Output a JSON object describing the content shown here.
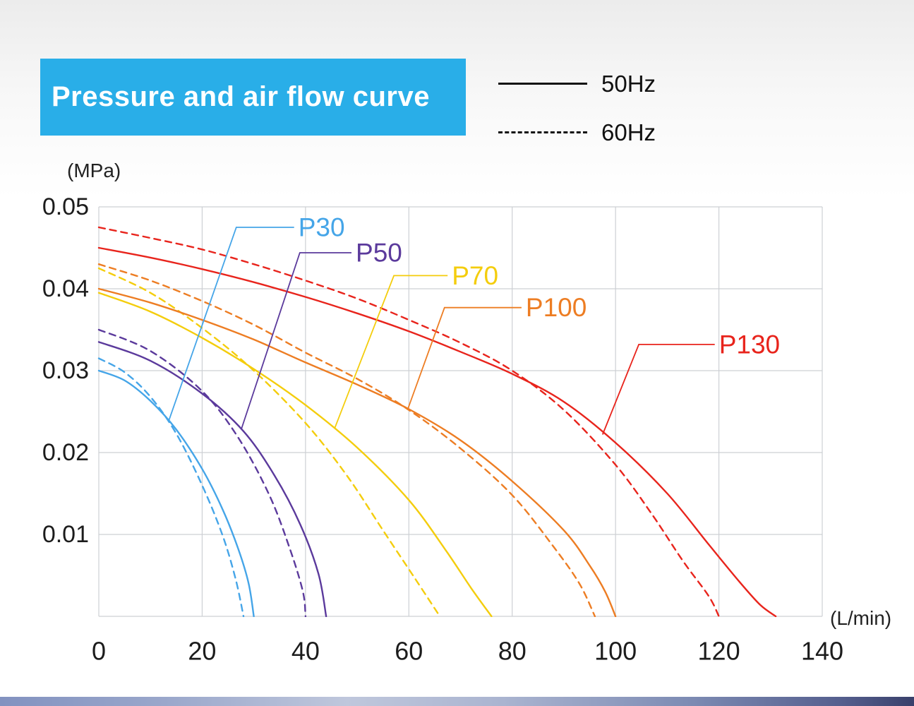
{
  "title": {
    "text": "Pressure and air flow curve",
    "bg_color": "#29AEE8",
    "text_color": "#FFFFFF"
  },
  "legend": {
    "line_color": "#111111",
    "items": [
      {
        "label": "50Hz",
        "line_style": "solid"
      },
      {
        "label": "60Hz",
        "line_style": "dashed"
      }
    ]
  },
  "axes": {
    "y_unit": "(MPa)",
    "x_unit": "(L/min)",
    "x_ticks": [
      "0",
      "20",
      "40",
      "60",
      "80",
      "100",
      "120",
      "140"
    ],
    "x_tick_values": [
      0,
      20,
      40,
      60,
      80,
      100,
      120,
      140
    ],
    "y_ticks": [
      "0.01",
      "0.02",
      "0.03",
      "0.04",
      "0.05"
    ],
    "y_tick_values": [
      0.01,
      0.02,
      0.03,
      0.04,
      0.05
    ],
    "grid_color": "#cdd0d4",
    "tick_color": "#1c1c1c"
  },
  "chart_data": {
    "type": "line",
    "title": "Pressure and air flow curve",
    "xlabel": "(L/min)",
    "ylabel": "(MPa)",
    "xlim": [
      0,
      140
    ],
    "ylim": [
      0,
      0.05
    ],
    "grid": true,
    "legend_position": "top-right",
    "series": [
      {
        "name": "P30 50Hz",
        "model": "P30",
        "frequency": "50Hz",
        "style": "solid",
        "color": "#45A5E8",
        "points": [
          [
            0,
            0.03
          ],
          [
            5,
            0.0288
          ],
          [
            10,
            0.0263
          ],
          [
            15,
            0.0228
          ],
          [
            20,
            0.018
          ],
          [
            24,
            0.013
          ],
          [
            27,
            0.0082
          ],
          [
            29,
            0.004
          ],
          [
            30,
            0
          ]
        ]
      },
      {
        "name": "P30 60Hz",
        "model": "P30",
        "frequency": "60Hz",
        "style": "dashed",
        "color": "#45A5E8",
        "points": [
          [
            0,
            0.0315
          ],
          [
            5,
            0.0298
          ],
          [
            10,
            0.0268
          ],
          [
            15,
            0.0223
          ],
          [
            20,
            0.016
          ],
          [
            24,
            0.0098
          ],
          [
            26.5,
            0.0045
          ],
          [
            28,
            0
          ]
        ]
      },
      {
        "name": "P50 50Hz",
        "model": "P50",
        "frequency": "50Hz",
        "style": "solid",
        "color": "#5B3A9C",
        "points": [
          [
            0,
            0.0335
          ],
          [
            10,
            0.0312
          ],
          [
            20,
            0.0272
          ],
          [
            28,
            0.0226
          ],
          [
            34,
            0.0172
          ],
          [
            39,
            0.0112
          ],
          [
            42.5,
            0.0052
          ],
          [
            44,
            0
          ]
        ]
      },
      {
        "name": "P50 60Hz",
        "model": "P50",
        "frequency": "60Hz",
        "style": "dashed",
        "color": "#5B3A9C",
        "points": [
          [
            0,
            0.035
          ],
          [
            10,
            0.0324
          ],
          [
            20,
            0.0275
          ],
          [
            27,
            0.0218
          ],
          [
            33,
            0.0148
          ],
          [
            37,
            0.0082
          ],
          [
            39.5,
            0.003
          ],
          [
            40,
            0
          ]
        ]
      },
      {
        "name": "P70 50Hz",
        "model": "P70",
        "frequency": "50Hz",
        "style": "solid",
        "color": "#F4CD0D",
        "points": [
          [
            0,
            0.0395
          ],
          [
            10,
            0.0372
          ],
          [
            20,
            0.034
          ],
          [
            30,
            0.0302
          ],
          [
            40,
            0.0258
          ],
          [
            50,
            0.0206
          ],
          [
            60,
            0.0142
          ],
          [
            67,
            0.0082
          ],
          [
            72,
            0.0035
          ],
          [
            76,
            0
          ]
        ]
      },
      {
        "name": "P70 60Hz",
        "model": "P70",
        "frequency": "60Hz",
        "style": "dashed",
        "color": "#F4CD0D",
        "points": [
          [
            0,
            0.0425
          ],
          [
            10,
            0.0395
          ],
          [
            20,
            0.0352
          ],
          [
            30,
            0.03
          ],
          [
            40,
            0.0236
          ],
          [
            48,
            0.0172
          ],
          [
            55,
            0.0105
          ],
          [
            61,
            0.0048
          ],
          [
            66,
            0
          ]
        ]
      },
      {
        "name": "P100 50Hz",
        "model": "P100",
        "frequency": "50Hz",
        "style": "solid",
        "color": "#ED7D23",
        "points": [
          [
            0,
            0.04
          ],
          [
            10,
            0.0383
          ],
          [
            20,
            0.0362
          ],
          [
            30,
            0.0338
          ],
          [
            40,
            0.031
          ],
          [
            50,
            0.0283
          ],
          [
            60,
            0.0253
          ],
          [
            70,
            0.0215
          ],
          [
            80,
            0.0165
          ],
          [
            90,
            0.0105
          ],
          [
            95,
            0.0062
          ],
          [
            98,
            0.003
          ],
          [
            100,
            0
          ]
        ]
      },
      {
        "name": "P100 60Hz",
        "model": "P100",
        "frequency": "60Hz",
        "style": "dashed",
        "color": "#ED7D23",
        "points": [
          [
            0,
            0.043
          ],
          [
            10,
            0.041
          ],
          [
            20,
            0.0385
          ],
          [
            30,
            0.0356
          ],
          [
            40,
            0.0322
          ],
          [
            50,
            0.029
          ],
          [
            60,
            0.0252
          ],
          [
            70,
            0.0205
          ],
          [
            80,
            0.0148
          ],
          [
            88,
            0.0085
          ],
          [
            93,
            0.004
          ],
          [
            96,
            0
          ]
        ]
      },
      {
        "name": "P130 50Hz",
        "model": "P130",
        "frequency": "50Hz",
        "style": "solid",
        "color": "#E8241C",
        "points": [
          [
            0,
            0.045
          ],
          [
            10,
            0.0438
          ],
          [
            20,
            0.0424
          ],
          [
            30,
            0.0408
          ],
          [
            40,
            0.039
          ],
          [
            50,
            0.037
          ],
          [
            60,
            0.0348
          ],
          [
            70,
            0.0323
          ],
          [
            80,
            0.0296
          ],
          [
            90,
            0.0262
          ],
          [
            100,
            0.0212
          ],
          [
            110,
            0.015
          ],
          [
            118,
            0.0088
          ],
          [
            124,
            0.0042
          ],
          [
            128,
            0.0014
          ],
          [
            131,
            0
          ]
        ]
      },
      {
        "name": "P130 60Hz",
        "model": "P130",
        "frequency": "60Hz",
        "style": "dashed",
        "color": "#E8241C",
        "points": [
          [
            0,
            0.0475
          ],
          [
            10,
            0.0462
          ],
          [
            20,
            0.0448
          ],
          [
            30,
            0.043
          ],
          [
            40,
            0.041
          ],
          [
            50,
            0.0388
          ],
          [
            60,
            0.0362
          ],
          [
            70,
            0.0334
          ],
          [
            80,
            0.03
          ],
          [
            90,
            0.0252
          ],
          [
            100,
            0.0185
          ],
          [
            107,
            0.0125
          ],
          [
            113,
            0.0068
          ],
          [
            118,
            0.0025
          ],
          [
            120,
            0
          ]
        ]
      }
    ],
    "annotations": [
      {
        "text": "P30",
        "color": "#45A5E8",
        "attach": [
          13.5,
          0.0238
        ],
        "elbow": [
          26.6,
          0.0475
        ],
        "label_x": 37.8
      },
      {
        "text": "P50",
        "color": "#5B3A9C",
        "attach": [
          27.6,
          0.0229
        ],
        "elbow": [
          38.9,
          0.0444
        ],
        "label_x": 48.9
      },
      {
        "text": "P70",
        "color": "#F4CD0D",
        "attach": [
          45.6,
          0.0229
        ],
        "elbow": [
          57.1,
          0.0416
        ],
        "label_x": 67.5
      },
      {
        "text": "P100",
        "color": "#ED7D23",
        "attach": [
          59.8,
          0.0253
        ],
        "elbow": [
          66.9,
          0.0377
        ],
        "label_x": 81.8
      },
      {
        "text": "P130",
        "color": "#E8241C",
        "attach": [
          97.5,
          0.0222
        ],
        "elbow": [
          104.5,
          0.0332
        ],
        "label_x": 119.2
      }
    ]
  }
}
